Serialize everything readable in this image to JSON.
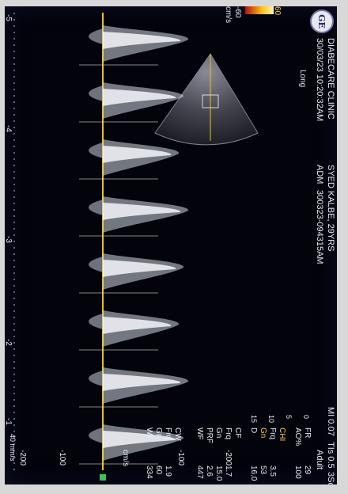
{
  "header": {
    "clinic": "DIABECARE CLINIC",
    "datetime": "30/03/23 10:20:32AM",
    "patient": "SYED KALBE, 29YRS",
    "session": "ADM",
    "study_id": "300323-094315AM",
    "mi_ti": "MI 0.07",
    "tis": "TIs 0.5",
    "probe": "3Sc",
    "preset": "Adult"
  },
  "logo_text": "GE",
  "view_label": "Long",
  "params": {
    "fr_label": "FR",
    "fr_val": "29",
    "ao_label": "AO%",
    "ao_val": "100",
    "chi_label": "CHI",
    "frq_label": "Frq",
    "frq_val": "3.5",
    "gn_label": "Gn",
    "gn_val": "53",
    "d_label": "D",
    "d_val": "16.0",
    "cf_label": "CF",
    "cf_frq_label": "Frq",
    "cf_frq_val": "1.7",
    "cf_gn_label": "Gn",
    "cf_gn_val": "15.0",
    "prf_label": "PRF",
    "prf_val": "2.6",
    "wf_label": "WF",
    "wf_val": "447",
    "cw_label": "CW",
    "cw_frq_label": "Frq",
    "cw_frq_val": "1.9",
    "cw_gn_label": "Gn",
    "cw_gn_val": "60",
    "cw_wf_label": "WF",
    "cw_wf_val": "334",
    "side_marks": [
      "0",
      "5",
      "10",
      "15"
    ]
  },
  "color_scale": {
    "top": "60",
    "bottom": "-60",
    "unit": "cm/s"
  },
  "velocity_axis": {
    "unit": "cm/s",
    "ticks": [
      "-200",
      "-100",
      "-100",
      "-200"
    ]
  },
  "time_axis": {
    "ticks": [
      "-5",
      "-4",
      "-3",
      "-2",
      "-1"
    ],
    "sweep": "40 mm/s"
  },
  "colors": {
    "text": "#e9ecf4",
    "accent": "#ffd33a",
    "baseline": "#e8c21a",
    "marker": "#36c35a",
    "background": "#02030b"
  }
}
